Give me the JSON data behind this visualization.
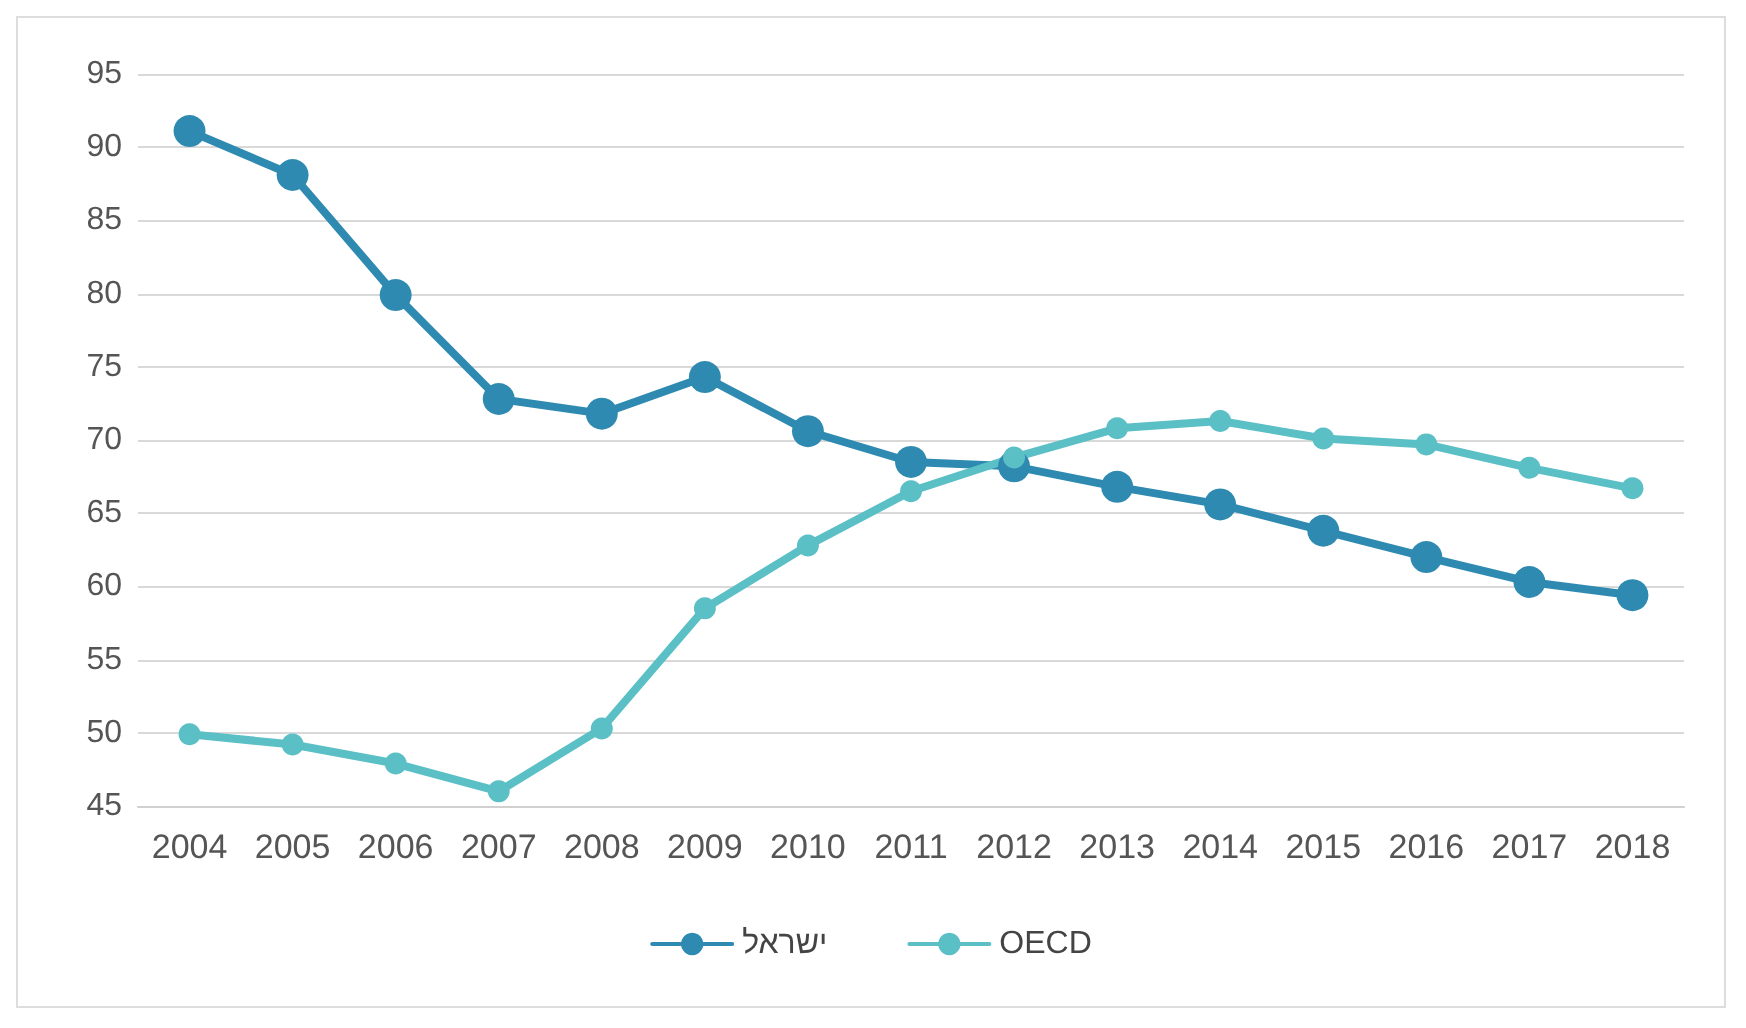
{
  "chart_data": {
    "type": "line",
    "categories": [
      "2004",
      "2005",
      "2006",
      "2007",
      "2008",
      "2009",
      "2010",
      "2011",
      "2012",
      "2013",
      "2014",
      "2015",
      "2016",
      "2017",
      "2018"
    ],
    "series": [
      {
        "name": "ישראל",
        "color": "#2e8ab0",
        "values": [
          91.1,
          88.1,
          79.9,
          72.8,
          71.8,
          74.3,
          70.6,
          68.5,
          68.2,
          66.8,
          65.6,
          63.8,
          62.0,
          60.3,
          59.4
        ]
      },
      {
        "name": "OECD",
        "color": "#5bbfc6",
        "values": [
          49.9,
          49.2,
          47.9,
          46.0,
          50.3,
          58.5,
          62.8,
          66.5,
          68.8,
          70.8,
          71.3,
          70.1,
          69.7,
          68.1,
          66.7
        ]
      }
    ],
    "ylim": [
      45,
      95
    ],
    "yticks": [
      45,
      50,
      55,
      60,
      65,
      70,
      75,
      80,
      85,
      90,
      95
    ],
    "grid": "y",
    "legend": "bottom",
    "marker": "circle",
    "line_style": "solid"
  }
}
